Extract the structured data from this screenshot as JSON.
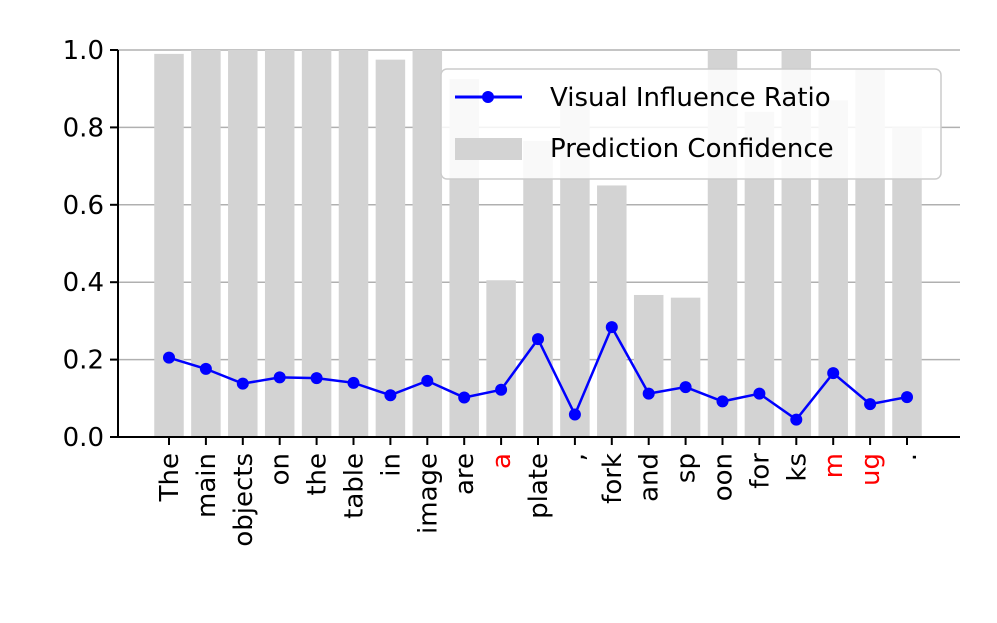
{
  "chart_data": {
    "type": "bar+line",
    "categories": [
      "The",
      "main",
      "objects",
      "on",
      "the",
      "table",
      "in",
      "image",
      "are",
      "a",
      "plate",
      ",",
      "fork",
      "and",
      "sp",
      "oon",
      "for",
      "ks",
      "m",
      "ug",
      "."
    ],
    "highlighted_categories": [
      "a",
      "m",
      "ug"
    ],
    "highlight_color": "#ff0000",
    "series": [
      {
        "name": "Visual Influence Ratio",
        "type": "line",
        "color": "#0000ff",
        "values": [
          0.205,
          0.176,
          0.138,
          0.154,
          0.152,
          0.14,
          0.108,
          0.145,
          0.102,
          0.122,
          0.253,
          0.058,
          0.284,
          0.112,
          0.129,
          0.092,
          0.112,
          0.045,
          0.165,
          0.085,
          0.103
        ]
      },
      {
        "name": "Prediction Confidence",
        "type": "bar",
        "color": "#d3d3d3",
        "values": [
          0.99,
          1.0,
          1.0,
          1.0,
          1.0,
          1.0,
          0.975,
          1.0,
          0.925,
          0.405,
          0.765,
          0.875,
          0.65,
          0.367,
          0.36,
          1.0,
          0.84,
          1.0,
          0.87,
          0.95,
          0.8
        ]
      }
    ],
    "ylim": [
      0,
      1.0
    ],
    "yticks": [
      "0.0",
      "0.2",
      "0.4",
      "0.6",
      "0.8",
      "1.0"
    ],
    "grid": "horizontal",
    "legend": "top-right",
    "title": "",
    "xlabel": "",
    "ylabel": ""
  }
}
